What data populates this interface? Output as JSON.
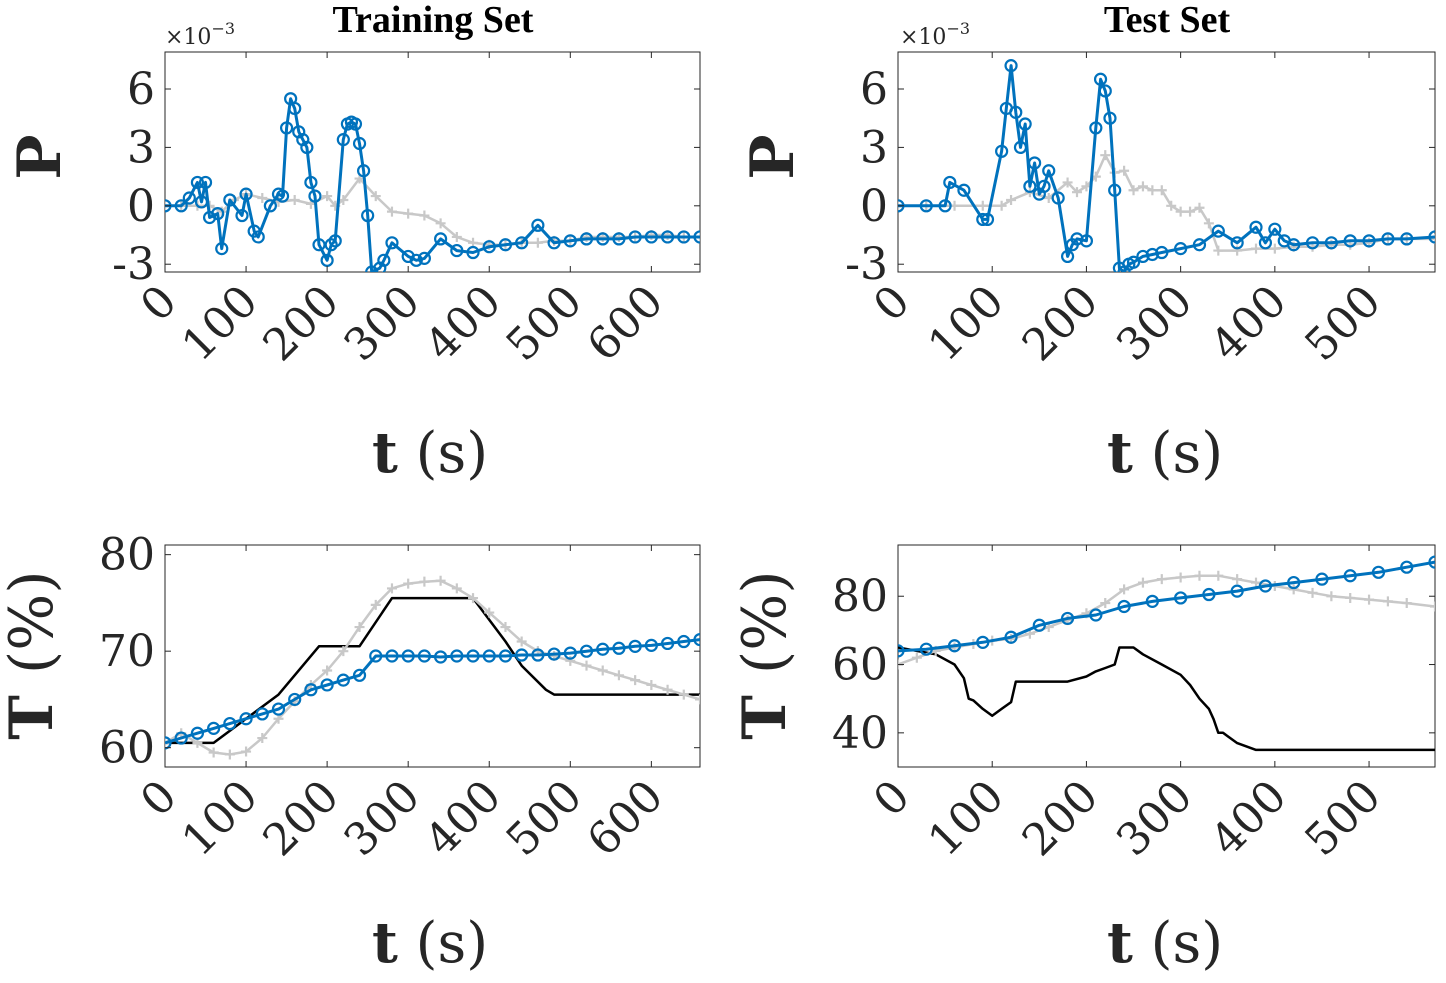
{
  "chart_data": [
    {
      "type": "line",
      "title": "Training Set",
      "ylabel": "P",
      "xlabel_var": "t",
      "xlabel_unit": "(s)",
      "exponent": "×10",
      "exponent_power": "−3",
      "xlim": [
        0,
        660
      ],
      "ylim": [
        -3.4,
        7.9
      ],
      "xticks": [
        0,
        100,
        200,
        300,
        400,
        500,
        600
      ],
      "yticks": [
        -3,
        0,
        3,
        6
      ],
      "ytick_labels": [
        "-3",
        "0",
        "3",
        "6"
      ],
      "series": [
        {
          "name": "gray",
          "color": "#c8c8c8",
          "marker": "plus",
          "x": [
            0,
            20,
            40,
            55,
            70,
            85,
            100,
            120,
            140,
            160,
            180,
            200,
            210,
            220,
            240,
            260,
            280,
            300,
            320,
            340,
            360,
            380,
            400,
            420,
            440,
            460,
            480,
            500,
            520,
            540,
            560,
            580,
            600,
            620,
            640,
            660
          ],
          "y": [
            0,
            0,
            0,
            0,
            -0.3,
            0.3,
            0.6,
            0.4,
            0.2,
            0.3,
            0.1,
            0.5,
            0,
            0.3,
            1.4,
            0.5,
            -0.3,
            -0.4,
            -0.5,
            -0.9,
            -1.6,
            -1.9,
            -2.0,
            -2.0,
            -1.9,
            -1.9,
            -1.8,
            -1.8,
            -1.6,
            -1.6,
            -1.6,
            -1.6,
            -1.5,
            -1.5,
            -1.6,
            -1.6
          ]
        },
        {
          "name": "blue",
          "color": "#0072bd",
          "marker": "circle",
          "x": [
            0,
            20,
            30,
            40,
            45,
            50,
            55,
            65,
            70,
            80,
            95,
            100,
            110,
            115,
            130,
            140,
            145,
            150,
            155,
            160,
            165,
            170,
            175,
            180,
            185,
            190,
            200,
            205,
            210,
            220,
            225,
            230,
            235,
            240,
            245,
            250,
            255,
            265,
            270,
            280,
            300,
            310,
            320,
            340,
            360,
            380,
            400,
            420,
            440,
            460,
            480,
            500,
            520,
            540,
            560,
            580,
            600,
            620,
            640,
            660
          ],
          "y": [
            0,
            0,
            0.4,
            1.2,
            0.2,
            1.2,
            -0.6,
            -0.4,
            -2.2,
            0.3,
            -0.5,
            0.6,
            -1.3,
            -1.6,
            0,
            0.6,
            0.5,
            4.0,
            5.5,
            5.0,
            3.8,
            3.4,
            3.0,
            1.2,
            0.5,
            -2.0,
            -2.8,
            -2.0,
            -1.8,
            3.4,
            4.2,
            4.3,
            4.2,
            3.2,
            1.8,
            -0.5,
            -3.4,
            -3.2,
            -2.8,
            -1.9,
            -2.6,
            -2.8,
            -2.7,
            -1.7,
            -2.3,
            -2.4,
            -2.1,
            -2.0,
            -1.9,
            -1.0,
            -1.9,
            -1.8,
            -1.7,
            -1.7,
            -1.7,
            -1.6,
            -1.6,
            -1.6,
            -1.6,
            -1.6
          ]
        }
      ]
    },
    {
      "type": "line",
      "title": "Test Set",
      "ylabel": "P",
      "xlabel_var": "t",
      "xlabel_unit": "(s)",
      "exponent": "×10",
      "exponent_power": "−3",
      "xlim": [
        0,
        570
      ],
      "ylim": [
        -3.4,
        7.9
      ],
      "xticks": [
        0,
        100,
        200,
        300,
        400,
        500
      ],
      "yticks": [
        -3,
        0,
        3,
        6
      ],
      "ytick_labels": [
        "-3",
        "0",
        "3",
        "6"
      ],
      "series": [
        {
          "name": "gray",
          "color": "#c8c8c8",
          "marker": "plus",
          "x": [
            0,
            30,
            60,
            90,
            110,
            120,
            140,
            160,
            180,
            190,
            200,
            210,
            220,
            230,
            240,
            250,
            260,
            270,
            280,
            290,
            300,
            310,
            320,
            330,
            340,
            360,
            380,
            400,
            420,
            440,
            460,
            480,
            500,
            520,
            540,
            570
          ],
          "y": [
            0,
            0,
            0,
            0,
            0,
            0.3,
            0.7,
            0.4,
            1.2,
            0.7,
            1.0,
            1.5,
            2.6,
            1.7,
            1.8,
            0.8,
            1.0,
            0.8,
            0.8,
            0,
            -0.3,
            -0.3,
            -0.1,
            -0.9,
            -2.3,
            -2.3,
            -2.2,
            -2.2,
            -2.1,
            -2.1,
            -2.0,
            -2.0,
            -1.9,
            -1.7,
            -1.7,
            -1.7
          ]
        },
        {
          "name": "blue",
          "color": "#0072bd",
          "marker": "circle",
          "x": [
            0,
            30,
            50,
            55,
            70,
            90,
            95,
            110,
            115,
            120,
            125,
            130,
            135,
            140,
            145,
            150,
            155,
            160,
            170,
            180,
            185,
            190,
            200,
            210,
            215,
            220,
            225,
            230,
            235,
            240,
            245,
            250,
            260,
            270,
            280,
            300,
            320,
            340,
            360,
            380,
            390,
            400,
            410,
            420,
            440,
            460,
            480,
            500,
            520,
            540,
            570
          ],
          "y": [
            0,
            0,
            0,
            1.2,
            0.8,
            -0.7,
            -0.7,
            2.8,
            5.0,
            7.2,
            4.8,
            3.0,
            4.2,
            1.0,
            2.2,
            0.6,
            1.0,
            1.8,
            0.4,
            -2.6,
            -2.0,
            -1.7,
            -1.8,
            4.0,
            6.5,
            5.9,
            4.5,
            0.8,
            -3.2,
            -3.4,
            -3.0,
            -2.9,
            -2.6,
            -2.5,
            -2.4,
            -2.2,
            -2.0,
            -1.3,
            -1.9,
            -1.1,
            -1.9,
            -1.2,
            -1.8,
            -2.0,
            -1.9,
            -1.9,
            -1.8,
            -1.8,
            -1.7,
            -1.7,
            -1.6
          ]
        }
      ]
    },
    {
      "type": "line",
      "title": "",
      "ylabel": "T",
      "ylabel_unit": "(%)",
      "xlabel_var": "t",
      "xlabel_unit": "(s)",
      "xlim": [
        0,
        660
      ],
      "ylim": [
        58,
        81
      ],
      "xticks": [
        0,
        100,
        200,
        300,
        400,
        500,
        600
      ],
      "yticks": [
        60,
        70,
        80
      ],
      "ytick_labels": [
        "60",
        "70",
        "80"
      ],
      "series": [
        {
          "name": "black",
          "color": "#000000",
          "marker": "none",
          "x": [
            0,
            60,
            140,
            190,
            240,
            280,
            300,
            380,
            420,
            440,
            470,
            480,
            660
          ],
          "y": [
            60.5,
            60.5,
            65.5,
            70.5,
            70.5,
            75.5,
            75.5,
            75.5,
            71.0,
            68.5,
            66.0,
            65.5,
            65.5
          ]
        },
        {
          "name": "gray",
          "color": "#c8c8c8",
          "marker": "plus",
          "x": [
            0,
            20,
            40,
            60,
            80,
            100,
            120,
            140,
            160,
            180,
            200,
            220,
            240,
            260,
            280,
            300,
            320,
            340,
            360,
            380,
            400,
            420,
            440,
            460,
            480,
            500,
            520,
            540,
            560,
            580,
            600,
            620,
            640,
            660
          ],
          "y": [
            60.5,
            61.5,
            60.5,
            59.5,
            59.3,
            59.6,
            61.0,
            63.0,
            64.8,
            66.5,
            68.0,
            70.0,
            72.5,
            74.8,
            76.5,
            77.0,
            77.2,
            77.3,
            76.5,
            75.5,
            74.0,
            72.5,
            71.0,
            70.0,
            69.5,
            69.0,
            68.5,
            68.0,
            67.5,
            67.0,
            66.5,
            66.0,
            65.5,
            65.0
          ]
        },
        {
          "name": "blue",
          "color": "#0072bd",
          "marker": "circle",
          "x": [
            0,
            20,
            40,
            60,
            80,
            100,
            120,
            140,
            160,
            180,
            200,
            220,
            240,
            260,
            280,
            300,
            320,
            340,
            360,
            380,
            400,
            420,
            440,
            460,
            480,
            500,
            520,
            540,
            560,
            580,
            600,
            620,
            640,
            660
          ],
          "y": [
            60.5,
            61.0,
            61.5,
            62.0,
            62.5,
            63.0,
            63.5,
            64.0,
            65.0,
            66.0,
            66.5,
            67.0,
            67.5,
            69.5,
            69.5,
            69.5,
            69.5,
            69.4,
            69.5,
            69.5,
            69.5,
            69.5,
            69.6,
            69.6,
            69.7,
            69.8,
            70.0,
            70.2,
            70.3,
            70.5,
            70.6,
            70.8,
            71.0,
            71.2
          ]
        }
      ]
    },
    {
      "type": "line",
      "title": "",
      "ylabel": "T",
      "ylabel_unit": "(%)",
      "xlabel_var": "t",
      "xlabel_unit": "(s)",
      "xlim": [
        0,
        570
      ],
      "ylim": [
        30,
        95
      ],
      "xticks": [
        0,
        100,
        200,
        300,
        400,
        500
      ],
      "yticks": [
        40,
        60,
        80
      ],
      "ytick_labels": [
        "40",
        "60",
        "80"
      ],
      "series": [
        {
          "name": "black",
          "color": "#000000",
          "marker": "none",
          "x": [
            0,
            20,
            40,
            60,
            70,
            75,
            80,
            90,
            100,
            110,
            120,
            125,
            130,
            140,
            160,
            180,
            200,
            210,
            220,
            230,
            235,
            240,
            250,
            260,
            280,
            300,
            310,
            320,
            330,
            335,
            340,
            345,
            350,
            360,
            380,
            400,
            570
          ],
          "y": [
            65,
            64,
            63,
            60,
            56,
            50,
            49.5,
            47,
            45,
            47,
            49,
            55,
            55,
            55,
            55,
            55,
            56.5,
            58,
            59,
            60,
            65,
            65,
            65,
            63,
            60,
            57,
            54,
            50,
            47,
            44,
            40,
            40,
            39,
            37,
            35,
            35,
            35
          ]
        },
        {
          "name": "gray",
          "color": "#c8c8c8",
          "marker": "plus",
          "x": [
            0,
            20,
            40,
            60,
            80,
            100,
            120,
            140,
            160,
            180,
            200,
            220,
            240,
            260,
            280,
            300,
            320,
            340,
            360,
            380,
            400,
            420,
            440,
            460,
            480,
            500,
            520,
            540,
            570
          ],
          "y": [
            60,
            62,
            64,
            65,
            66,
            67,
            67.5,
            69,
            71,
            73,
            75,
            78,
            82,
            84,
            85,
            85.5,
            86,
            86,
            85,
            84,
            83,
            82,
            81,
            80,
            79.5,
            79,
            78.5,
            78,
            77
          ]
        },
        {
          "name": "blue",
          "color": "#0072bd",
          "marker": "circle",
          "x": [
            0,
            30,
            60,
            90,
            120,
            150,
            180,
            210,
            240,
            270,
            300,
            330,
            360,
            390,
            420,
            450,
            480,
            510,
            540,
            570
          ],
          "y": [
            64,
            64.5,
            65.5,
            66.5,
            68,
            71.5,
            73.5,
            74.5,
            77,
            78.5,
            79.5,
            80.5,
            81.5,
            83,
            84,
            85,
            86,
            87,
            88.5,
            90
          ]
        }
      ]
    }
  ]
}
